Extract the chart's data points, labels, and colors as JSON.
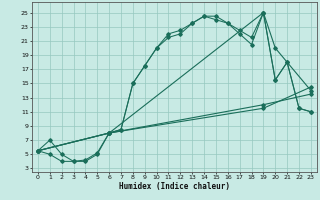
{
  "title": "",
  "xlabel": "Humidex (Indice chaleur)",
  "bg_color": "#c8eae4",
  "grid_color": "#96c8c0",
  "line_color": "#1a6e5a",
  "xlim": [
    -0.5,
    23.5
  ],
  "ylim": [
    2.5,
    26.5
  ],
  "xticks": [
    0,
    1,
    2,
    3,
    4,
    5,
    6,
    7,
    8,
    9,
    10,
    11,
    12,
    13,
    14,
    15,
    16,
    17,
    18,
    19,
    20,
    21,
    22,
    23
  ],
  "yticks": [
    3,
    5,
    7,
    9,
    11,
    13,
    15,
    17,
    19,
    21,
    23,
    25
  ],
  "line1_x": [
    0,
    1,
    2,
    3,
    4,
    5,
    6,
    7,
    8,
    9,
    10,
    11,
    12,
    13,
    14,
    15,
    16,
    17,
    18,
    19,
    20,
    21,
    22,
    23
  ],
  "line1_y": [
    5.5,
    7.0,
    5.0,
    4.0,
    4.2,
    5.2,
    8.0,
    8.5,
    15.0,
    17.5,
    20.0,
    21.5,
    22.0,
    23.5,
    24.5,
    24.0,
    23.5,
    22.0,
    20.5,
    25.0,
    15.5,
    18.0,
    11.5,
    11.0
  ],
  "line2_x": [
    0,
    1,
    2,
    3,
    4,
    5,
    6,
    7,
    8,
    9,
    10,
    11,
    12,
    13,
    14,
    15,
    16,
    17,
    18,
    19,
    20,
    21,
    22,
    23
  ],
  "line2_y": [
    5.5,
    5.0,
    4.0,
    4.0,
    4.0,
    5.0,
    8.0,
    8.5,
    15.0,
    17.5,
    20.0,
    22.0,
    22.5,
    23.5,
    24.5,
    24.5,
    23.5,
    22.5,
    21.5,
    25.0,
    15.5,
    18.0,
    11.5,
    11.0
  ],
  "line3_x": [
    0,
    6,
    19,
    20,
    23
  ],
  "line3_y": [
    5.5,
    8.0,
    25.0,
    20.0,
    14.0
  ],
  "line4_x": [
    0,
    6,
    19,
    23
  ],
  "line4_y": [
    5.5,
    8.0,
    12.0,
    13.5
  ],
  "line5_x": [
    0,
    6,
    19,
    23
  ],
  "line5_y": [
    5.5,
    8.0,
    11.5,
    14.5
  ]
}
